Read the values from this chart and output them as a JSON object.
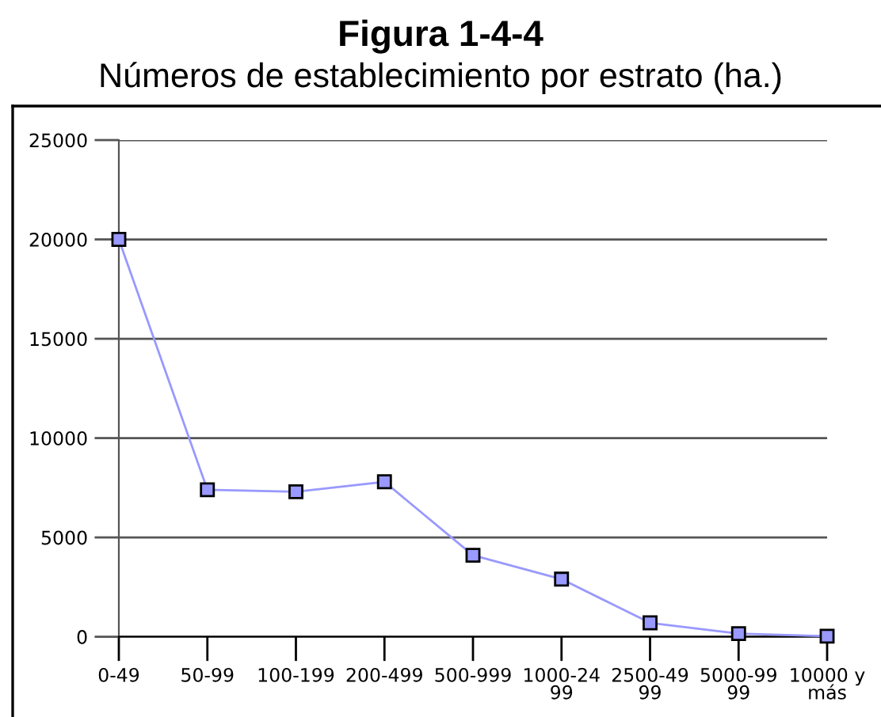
{
  "chart_data": {
    "type": "line",
    "title": "Figura 1-4-4",
    "subtitle": "Números de establecimiento por estrato (ha.)",
    "categories": [
      "0-49",
      "50-99",
      "100-199",
      "200-499",
      "500-999",
      "1000-24\n99",
      "2500-49\n99",
      "5000-99\n99",
      "10000 y\nmás"
    ],
    "series": [
      {
        "color": "#9999ff",
        "values": [
          20000,
          7400,
          7300,
          7800,
          4100,
          2900,
          700,
          160,
          30
        ]
      }
    ],
    "ylim": [
      0,
      25000
    ],
    "yticks": [
      0,
      5000,
      10000,
      15000,
      20000,
      25000
    ],
    "grid": "y",
    "marker": "square",
    "line_style": "solid"
  }
}
